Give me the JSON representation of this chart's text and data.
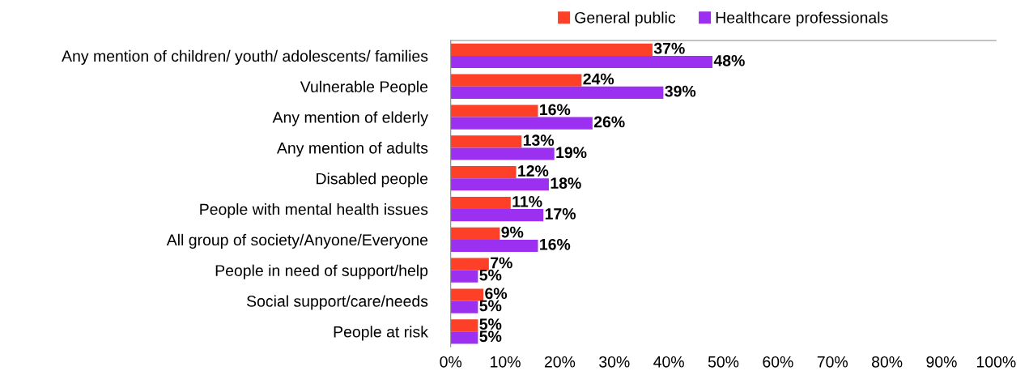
{
  "chart_data": {
    "type": "bar",
    "orientation": "horizontal",
    "categories": [
      "Any mention of children/ youth/ adolescents/ families",
      "Vulnerable People",
      "Any mention of elderly",
      "Any mention of adults",
      "Disabled people",
      "People with mental health issues",
      "All group of society/Anyone/Everyone",
      "People in need of support/help",
      "Social support/care/needs",
      "People at risk"
    ],
    "series": [
      {
        "name": "General public",
        "color": "#ff4028",
        "values": [
          37,
          24,
          16,
          13,
          12,
          11,
          9,
          7,
          6,
          5
        ],
        "value_labels": [
          "37%",
          "24%",
          "16%",
          "13%",
          "12%",
          "11%",
          "9%",
          "7%",
          "6%",
          "5%"
        ]
      },
      {
        "name": "Healthcare professionals",
        "color": "#9b30f0",
        "values": [
          48,
          39,
          26,
          19,
          18,
          17,
          16,
          5,
          5,
          5
        ],
        "value_labels": [
          "48%",
          "39%",
          "26%",
          "19%",
          "18%",
          "17%",
          "16%",
          "5%",
          "5%",
          "5%"
        ]
      }
    ],
    "xlim": [
      0,
      100
    ],
    "xticks": [
      {
        "value": 0,
        "label": "0%"
      },
      {
        "value": 10,
        "label": "10%"
      },
      {
        "value": 20,
        "label": "20%"
      },
      {
        "value": 30,
        "label": "30%"
      },
      {
        "value": 40,
        "label": "40%"
      },
      {
        "value": 50,
        "label": "50%"
      },
      {
        "value": 60,
        "label": "60%"
      },
      {
        "value": 70,
        "label": "70%"
      },
      {
        "value": 80,
        "label": "80%"
      },
      {
        "value": 90,
        "label": "90%"
      },
      {
        "value": 100,
        "label": "100%"
      }
    ],
    "legend": "top",
    "grid": false
  }
}
